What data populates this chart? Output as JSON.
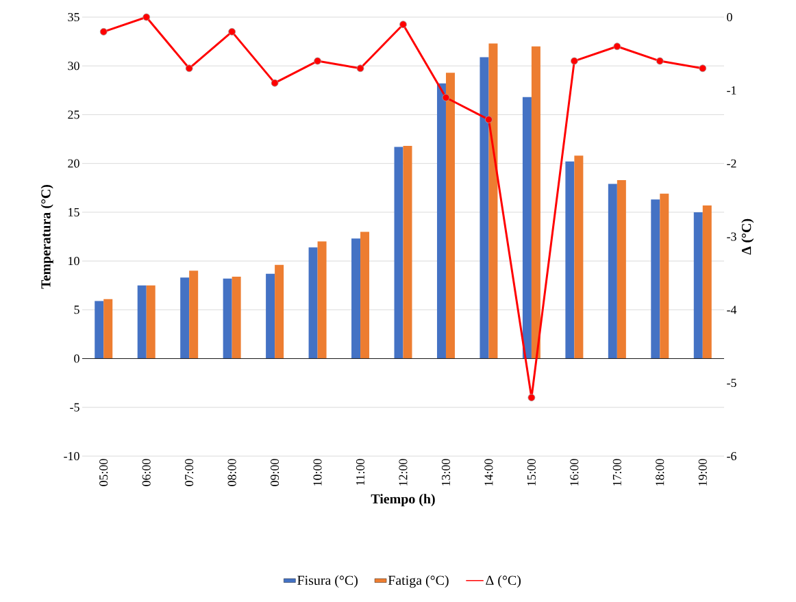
{
  "chart_data": {
    "type": "bar",
    "categories": [
      "05:00",
      "06:00",
      "07:00",
      "08:00",
      "09:00",
      "10:00",
      "11:00",
      "12:00",
      "13:00",
      "14:00",
      "15:00",
      "16:00",
      "17:00",
      "18:00",
      "19:00"
    ],
    "series": [
      {
        "name": "Fisura (°C)",
        "color": "#4472c4",
        "values": [
          5.9,
          7.5,
          8.3,
          8.2,
          8.7,
          11.4,
          12.3,
          21.7,
          28.2,
          30.9,
          26.8,
          20.2,
          17.9,
          16.3,
          15.0
        ]
      },
      {
        "name": "Fatiga (°C)",
        "color": "#ed7d31",
        "values": [
          6.1,
          7.5,
          9.0,
          8.4,
          9.6,
          12.0,
          13.0,
          21.8,
          29.3,
          32.3,
          32.0,
          20.8,
          18.3,
          16.9,
          15.7
        ]
      },
      {
        "name": "Δ (°C)",
        "color": "#ff0000",
        "type": "line",
        "axis": "y2",
        "marker": "circle",
        "values": [
          -0.2,
          0,
          -0.7,
          -0.2,
          -0.9,
          -0.6,
          -0.7,
          -0.1,
          -1.1,
          -1.4,
          -5.2,
          -0.6,
          -0.4,
          -0.6,
          -0.7
        ]
      }
    ],
    "xlabel": "Tiempo (h)",
    "ylabel": "Temperatura (°C)",
    "y2label": "Δ (°C)",
    "ylim": [
      -10,
      35
    ],
    "yticks": [
      -10,
      -5,
      0,
      5,
      10,
      15,
      20,
      25,
      30,
      35
    ],
    "y2lim": [
      -6,
      0
    ],
    "y2ticks": [
      -6,
      -5,
      -4,
      -3,
      -2,
      -1,
      0
    ],
    "grid": "y",
    "legend": "bottom"
  }
}
